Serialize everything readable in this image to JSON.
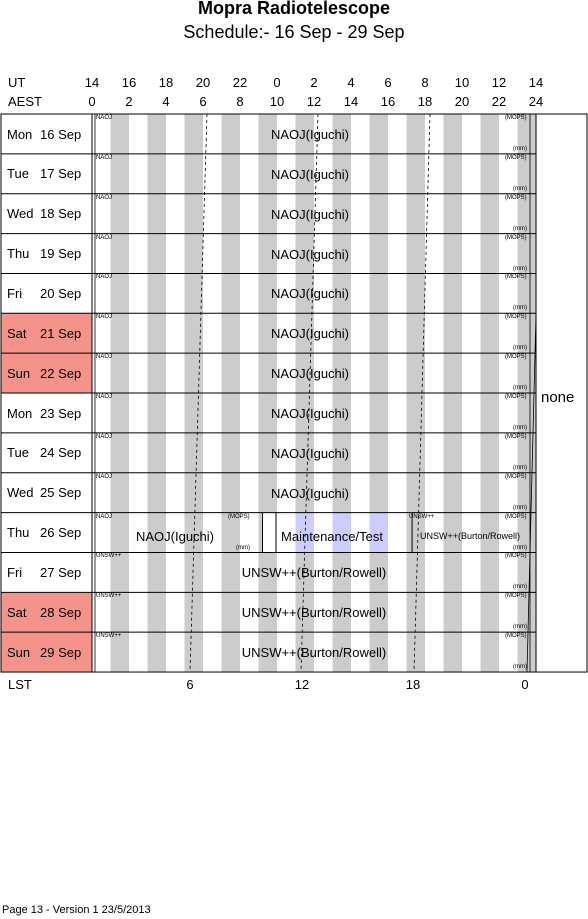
{
  "title": "Mopra Radiotelescope",
  "subtitle": "Schedule:- 16 Sep - 29 Sep",
  "ut_label": "UT",
  "aest_label": "AEST",
  "lst_label": "LST",
  "ut_hours": [
    "14",
    "16",
    "18",
    "20",
    "22",
    "0",
    "2",
    "4",
    "6",
    "8",
    "10",
    "12",
    "14"
  ],
  "aest_hours": [
    "0",
    "2",
    "4",
    "6",
    "8",
    "10",
    "12",
    "14",
    "16",
    "18",
    "20",
    "22",
    "24"
  ],
  "lst_ticks": [
    "6",
    "12",
    "18",
    "0"
  ],
  "days": [
    {
      "dn": "Mon",
      "dd": "16 Sep",
      "weekend": false
    },
    {
      "dn": "Tue",
      "dd": "17 Sep",
      "weekend": false
    },
    {
      "dn": "Wed",
      "dd": "18 Sep",
      "weekend": false
    },
    {
      "dn": "Thu",
      "dd": "19 Sep",
      "weekend": false
    },
    {
      "dn": "Fri",
      "dd": "20 Sep",
      "weekend": false
    },
    {
      "dn": "Sat",
      "dd": "21 Sep",
      "weekend": true
    },
    {
      "dn": "Sun",
      "dd": "22 Sep",
      "weekend": true
    },
    {
      "dn": "Mon",
      "dd": "23 Sep",
      "weekend": false
    },
    {
      "dn": "Tue",
      "dd": "24 Sep",
      "weekend": false
    },
    {
      "dn": "Wed",
      "dd": "25 Sep",
      "weekend": false
    },
    {
      "dn": "Thu",
      "dd": "26 Sep",
      "weekend": false
    },
    {
      "dn": "Fri",
      "dd": "27 Sep",
      "weekend": false
    },
    {
      "dn": "Sat",
      "dd": "28 Sep",
      "weekend": true
    },
    {
      "dn": "Sun",
      "dd": "29 Sep",
      "weekend": true
    }
  ],
  "projects": {
    "naoj": "NAOJ(Iguchi)",
    "naoj_short": "NAOJ",
    "naoj_thu": "NAOJ(Iguchi)",
    "maint": "Maintenance/Test",
    "unsw": "UNSW++(Burton/Rowell)",
    "unsw_short": "UNSW++",
    "mops": "(MOPS)",
    "mm": "(mm)"
  },
  "none_label": "none",
  "footer": "Page 13 - Version 1  23/5/2013",
  "colors": {
    "weekend": "#f4938a",
    "stripe": "#cccccc",
    "maint": "#ccccff"
  }
}
